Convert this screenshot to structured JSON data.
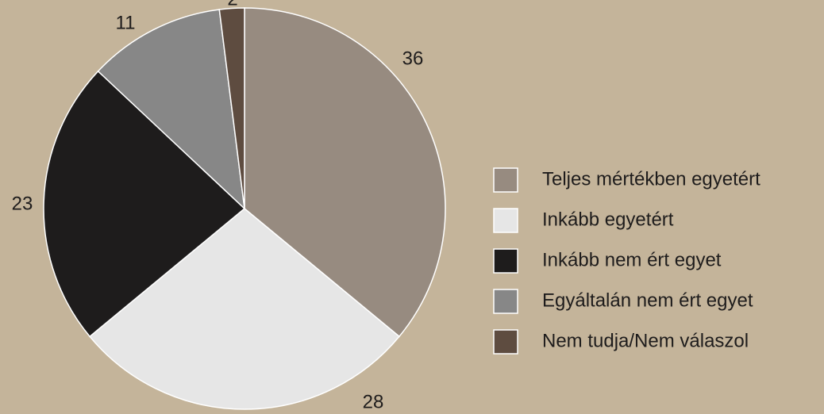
{
  "chart_data": {
    "type": "pie",
    "categories": [
      "Teljes mértékben egyetért",
      "Inkább egyetért",
      "Inkább nem ért egyet",
      "Egyáltalán nem ért egyet",
      "Nem tudja/Nem válaszol"
    ],
    "values": [
      36,
      28,
      23,
      11,
      2
    ],
    "colors": [
      "#978b80",
      "#e6e6e6",
      "#1e1c1c",
      "#878787",
      "#5e4c40"
    ]
  }
}
